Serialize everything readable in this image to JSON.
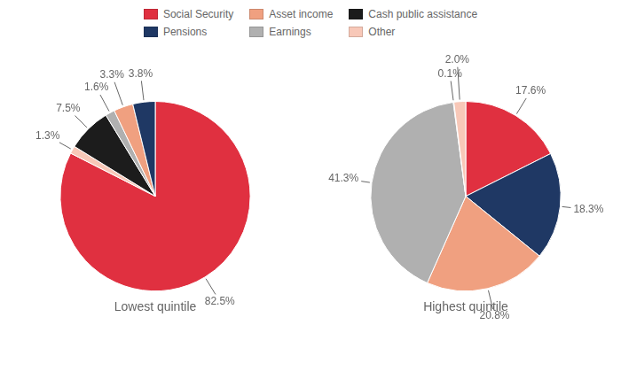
{
  "chart_data": [
    {
      "type": "pie",
      "title": "Lowest quintile",
      "categories": [
        "Social Security",
        "Other",
        "Cash public assistance",
        "Earnings",
        "Asset income",
        "Pensions"
      ],
      "values": [
        82.5,
        1.3,
        7.5,
        1.6,
        3.3,
        3.8
      ],
      "value_labels": [
        "82.5%",
        "1.3%",
        "7.5%",
        "1.6%",
        "3.3%",
        "3.8%"
      ],
      "colors": [
        "#E03040",
        "#F8C8B8",
        "#1C1C1C",
        "#B0B0B0",
        "#F0A080",
        "#1F3864"
      ],
      "data_labels": true
    },
    {
      "type": "pie",
      "title": "Highest quintile",
      "categories": [
        "Social Security",
        "Pensions",
        "Asset income",
        "Earnings",
        "Cash public assistance",
        "Other"
      ],
      "values": [
        17.6,
        18.3,
        20.8,
        41.3,
        0.1,
        2.0
      ],
      "value_labels": [
        "17.6%",
        "18.3%",
        "20.8%",
        "41.3%",
        "0.1%",
        "2.0%"
      ],
      "colors": [
        "#E03040",
        "#1F3864",
        "#F0A080",
        "#B0B0B0",
        "#1C1C1C",
        "#F8C8B8"
      ],
      "data_labels": true
    }
  ],
  "legend": {
    "position": "top",
    "series": [
      {
        "name": "Social Security",
        "color": "#E03040"
      },
      {
        "name": "Asset income",
        "color": "#F0A080"
      },
      {
        "name": "Cash public assistance",
        "color": "#1C1C1C"
      },
      {
        "name": "Pensions",
        "color": "#1F3864"
      },
      {
        "name": "Earnings",
        "color": "#B0B0B0"
      },
      {
        "name": "Other",
        "color": "#F8C8B8"
      }
    ]
  }
}
